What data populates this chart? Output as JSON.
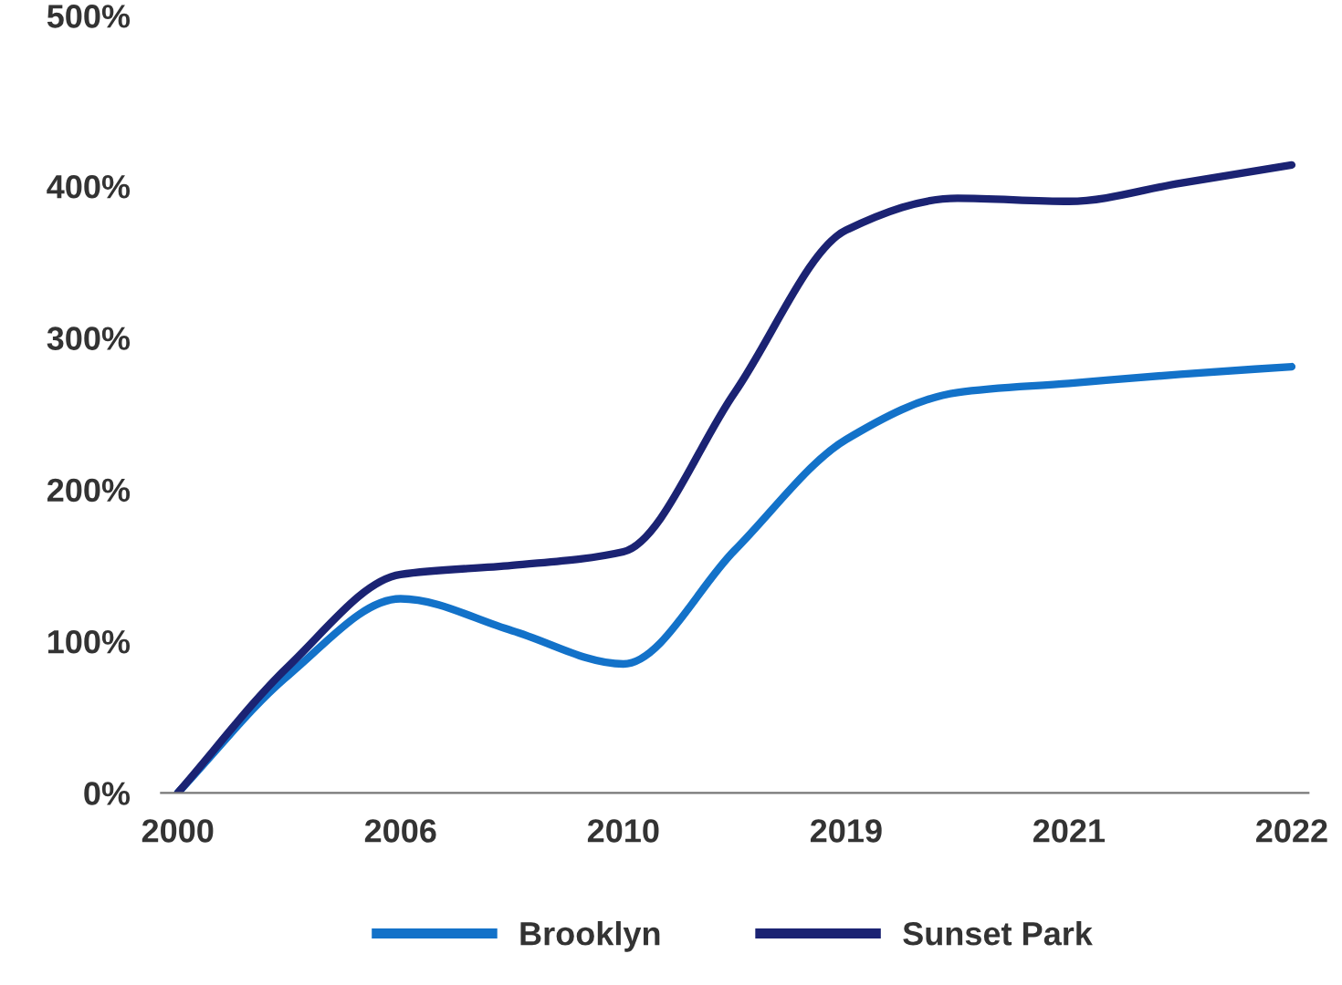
{
  "chart_data": {
    "type": "line",
    "categories": [
      "2000",
      null,
      "2006",
      null,
      "2010",
      null,
      "2019",
      null,
      "2021",
      null,
      "2022"
    ],
    "series": [
      {
        "name": "Brooklyn",
        "color": "#1372c9",
        "values": [
          0,
          78,
          128,
          107,
          85,
          160,
          233,
          264,
          270,
          276,
          281
        ]
      },
      {
        "name": "Sunset Park",
        "color": "#1b2373",
        "values": [
          0,
          84,
          144,
          150,
          159,
          264,
          371,
          392,
          390,
          402,
          414
        ]
      }
    ],
    "ylim": [
      0,
      500
    ],
    "yticks": [
      {
        "value": 0,
        "label": "0%"
      },
      {
        "value": 100,
        "label": "100%"
      },
      {
        "value": 200,
        "label": "200%"
      },
      {
        "value": 300,
        "label": "300%"
      },
      {
        "value": 400,
        "label": "400%"
      },
      {
        "value": 500,
        "label": "500%"
      }
    ],
    "grid": false,
    "legend": "bottom",
    "marker": "none",
    "line_style": "solid"
  }
}
